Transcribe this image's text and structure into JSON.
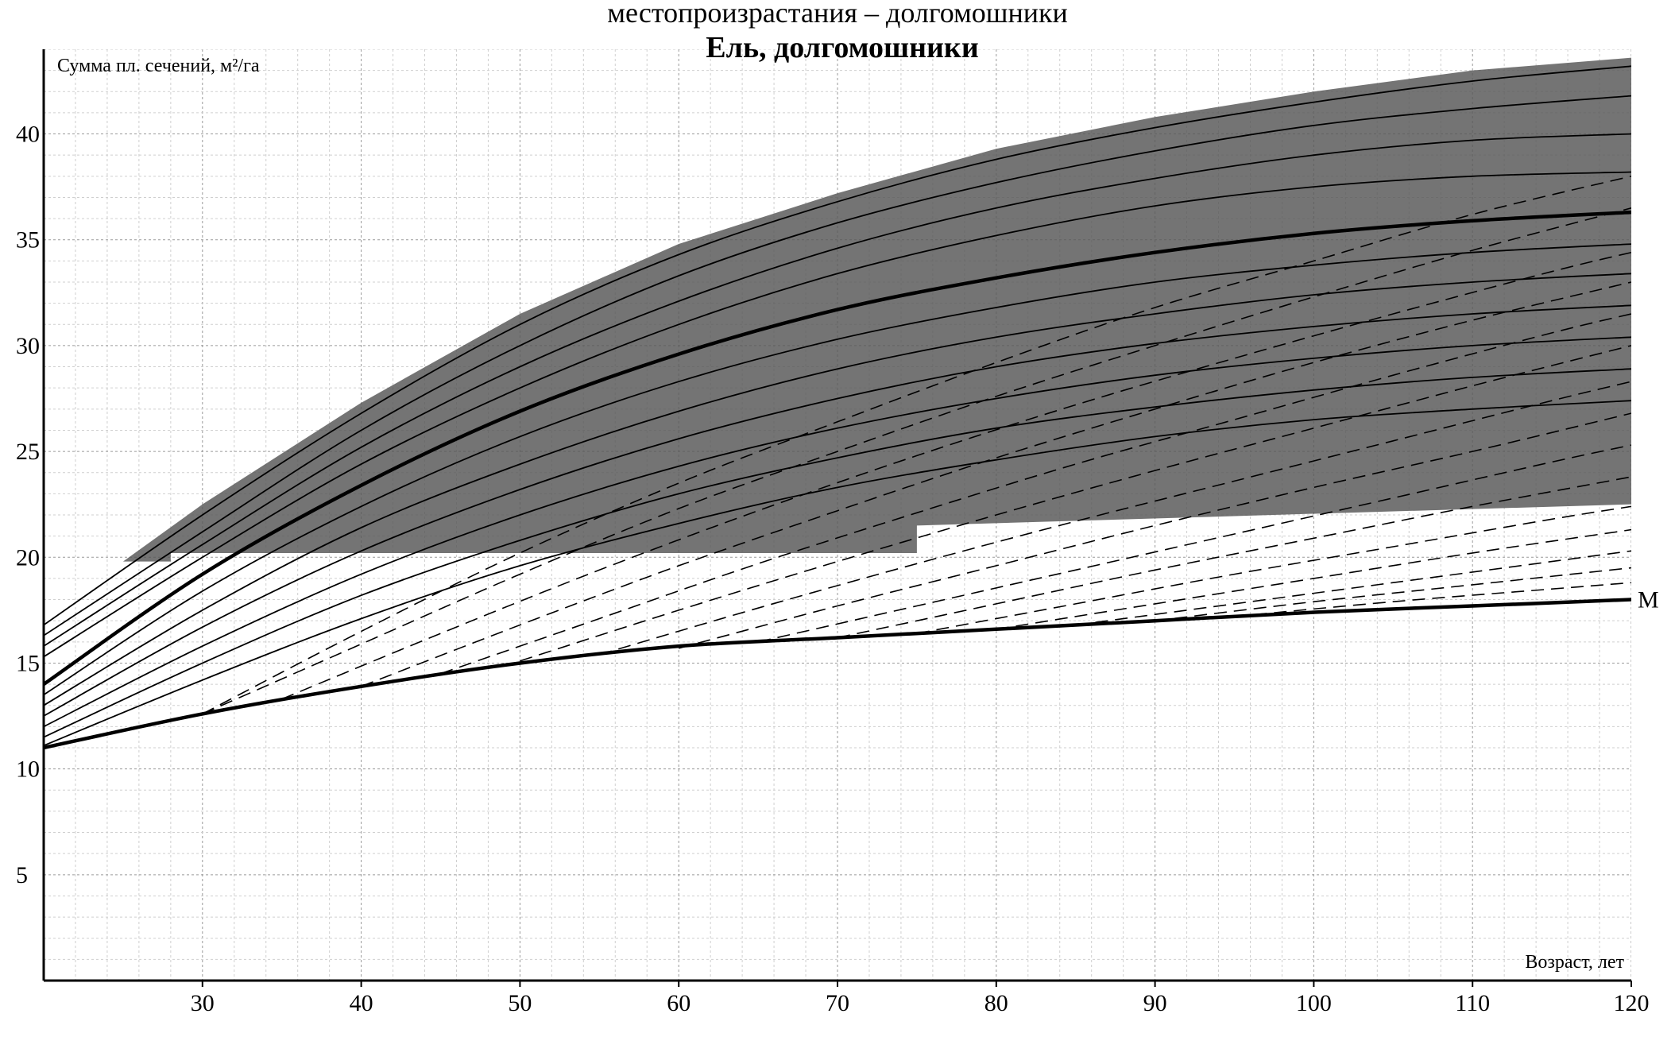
{
  "cut_heading": "местопроизрастания – долгомошники",
  "chart_data": {
    "type": "line",
    "title": "Ель, долгомошники",
    "ylabel": "Сумма пл. сечений, м²/га",
    "xlabel": "Возраст, лет",
    "xlim": [
      20,
      120
    ],
    "ylim": [
      0,
      44
    ],
    "x_ticks": [
      30,
      40,
      50,
      60,
      70,
      80,
      90,
      100,
      110,
      120
    ],
    "y_ticks": [
      5,
      10,
      15,
      20,
      25,
      30,
      35,
      40
    ],
    "grid": true,
    "minor_grid": true,
    "shaded_zone": {
      "color": "#555555",
      "upper": {
        "x": [
          25,
          30,
          40,
          50,
          60,
          70,
          80,
          90,
          100,
          110,
          120
        ],
        "y": [
          19.8,
          22.5,
          27.3,
          31.5,
          34.8,
          37.2,
          39.3,
          40.8,
          42.0,
          43.0,
          43.6
        ]
      },
      "lower": {
        "x": [
          25,
          28,
          28,
          75,
          75,
          120
        ],
        "y": [
          19.8,
          19.8,
          20.2,
          20.2,
          21.5,
          22.5
        ]
      }
    },
    "colors": {
      "solid": "#000000",
      "dashed": "#000000",
      "shade": "#555555"
    },
    "series": [
      {
        "style": "solid",
        "x": [
          20,
          30,
          40,
          50,
          60,
          70,
          80,
          90,
          100,
          110,
          120
        ],
        "y": [
          16.8,
          22.0,
          26.8,
          31.0,
          34.3,
          36.8,
          38.8,
          40.3,
          41.5,
          42.5,
          43.2
        ]
      },
      {
        "style": "solid",
        "x": [
          20,
          30,
          40,
          50,
          60,
          70,
          80,
          90,
          100,
          110,
          120
        ],
        "y": [
          16.3,
          21.2,
          26.0,
          30.0,
          33.3,
          35.8,
          37.7,
          39.2,
          40.4,
          41.2,
          41.8
        ]
      },
      {
        "style": "solid",
        "x": [
          20,
          30,
          40,
          50,
          60,
          70,
          80,
          90,
          100,
          110,
          120
        ],
        "y": [
          15.8,
          20.6,
          25.2,
          29.0,
          32.1,
          34.6,
          36.5,
          37.9,
          39.0,
          39.7,
          40.0
        ]
      },
      {
        "style": "solid",
        "x": [
          20,
          30,
          40,
          50,
          60,
          70,
          80,
          90,
          100,
          110,
          120
        ],
        "y": [
          15.3,
          20.0,
          24.4,
          28.0,
          31.0,
          33.4,
          35.2,
          36.6,
          37.5,
          38.0,
          38.2
        ]
      },
      {
        "style": "solid",
        "bold": true,
        "x": [
          20,
          30,
          40,
          50,
          60,
          70,
          80,
          90,
          100,
          110,
          120
        ],
        "y": [
          14.0,
          19.2,
          23.4,
          26.9,
          29.6,
          31.7,
          33.2,
          34.4,
          35.3,
          35.9,
          36.3
        ]
      },
      {
        "style": "solid",
        "x": [
          20,
          30,
          40,
          50,
          60,
          70,
          80,
          90,
          100,
          110,
          120
        ],
        "y": [
          13.5,
          18.4,
          22.4,
          25.7,
          28.3,
          30.3,
          31.8,
          33.0,
          33.8,
          34.4,
          34.8
        ]
      },
      {
        "style": "solid",
        "x": [
          20,
          30,
          40,
          50,
          60,
          70,
          80,
          90,
          100,
          110,
          120
        ],
        "y": [
          13.0,
          17.5,
          21.4,
          24.4,
          26.9,
          28.9,
          30.4,
          31.5,
          32.4,
          33.0,
          33.4
        ]
      },
      {
        "style": "solid",
        "x": [
          20,
          30,
          40,
          50,
          60,
          70,
          80,
          90,
          100,
          110,
          120
        ],
        "y": [
          12.5,
          16.7,
          20.3,
          23.2,
          25.6,
          27.5,
          29.0,
          30.1,
          30.9,
          31.5,
          31.9
        ]
      },
      {
        "style": "solid",
        "x": [
          20,
          30,
          40,
          50,
          60,
          70,
          80,
          90,
          100,
          110,
          120
        ],
        "y": [
          12.0,
          15.8,
          19.2,
          22.0,
          24.3,
          26.1,
          27.5,
          28.6,
          29.4,
          30.0,
          30.4
        ]
      },
      {
        "style": "solid",
        "x": [
          20,
          30,
          40,
          50,
          60,
          70,
          80,
          90,
          100,
          110,
          120
        ],
        "y": [
          11.5,
          15.0,
          18.2,
          20.8,
          23.0,
          24.7,
          26.1,
          27.1,
          27.9,
          28.5,
          28.9
        ]
      },
      {
        "style": "solid",
        "x": [
          20,
          30,
          40,
          50,
          60,
          70,
          80,
          90,
          100,
          110,
          120
        ],
        "y": [
          11.1,
          14.2,
          17.1,
          19.6,
          21.6,
          23.3,
          24.6,
          25.7,
          26.5,
          27.0,
          27.4
        ]
      },
      {
        "style": "dashed",
        "x": [
          30,
          40,
          50,
          60,
          70,
          80,
          90,
          100,
          110,
          120
        ],
        "y": [
          12.6,
          16.5,
          20.2,
          23.5,
          26.4,
          29.2,
          31.8,
          34.0,
          36.2,
          38.0
        ]
      },
      {
        "style": "dashed",
        "x": [
          30,
          40,
          50,
          60,
          70,
          80,
          90,
          100,
          110,
          120
        ],
        "y": [
          12.6,
          15.9,
          19.2,
          22.3,
          25.0,
          27.6,
          30.0,
          32.3,
          34.5,
          36.5
        ]
      },
      {
        "style": "dashed",
        "x": [
          35,
          45,
          55,
          65,
          75,
          85,
          95,
          105,
          115,
          120
        ],
        "y": [
          13.3,
          16.4,
          19.4,
          22.2,
          24.8,
          27.2,
          29.4,
          31.5,
          33.5,
          34.4
        ]
      },
      {
        "style": "dashed",
        "x": [
          40,
          50,
          60,
          70,
          80,
          90,
          100,
          110,
          120
        ],
        "y": [
          13.9,
          16.8,
          19.6,
          22.2,
          24.7,
          27.0,
          29.2,
          31.2,
          33.0
        ]
      },
      {
        "style": "dashed",
        "x": [
          45,
          55,
          65,
          75,
          85,
          95,
          105,
          115,
          120
        ],
        "y": [
          14.5,
          17.1,
          19.7,
          22.1,
          24.4,
          26.5,
          28.6,
          30.6,
          31.5
        ]
      },
      {
        "style": "dashed",
        "x": [
          50,
          60,
          70,
          80,
          90,
          100,
          110,
          120
        ],
        "y": [
          15.1,
          17.5,
          19.8,
          22.0,
          24.1,
          26.1,
          28.1,
          30.0
        ]
      },
      {
        "style": "dashed",
        "x": [
          55,
          65,
          75,
          85,
          95,
          105,
          115,
          120
        ],
        "y": [
          15.4,
          17.6,
          19.7,
          21.7,
          23.6,
          25.5,
          27.4,
          28.3
        ]
      },
      {
        "style": "dashed",
        "x": [
          60,
          70,
          80,
          90,
          100,
          110,
          120
        ],
        "y": [
          15.7,
          17.7,
          19.6,
          21.5,
          23.3,
          25.0,
          26.8
        ]
      },
      {
        "style": "dashed",
        "x": [
          65,
          75,
          85,
          95,
          105,
          115,
          120
        ],
        "y": [
          16.0,
          17.7,
          19.4,
          21.1,
          22.8,
          24.5,
          25.3
        ]
      },
      {
        "style": "dashed",
        "x": [
          70,
          80,
          90,
          100,
          110,
          120
        ],
        "y": [
          16.2,
          17.8,
          19.4,
          20.9,
          22.4,
          23.8
        ]
      },
      {
        "style": "dashed",
        "x": [
          75,
          85,
          95,
          105,
          115,
          120
        ],
        "y": [
          16.4,
          17.8,
          19.2,
          20.5,
          21.8,
          22.4
        ]
      },
      {
        "style": "dashed",
        "x": [
          80,
          90,
          100,
          110,
          120
        ],
        "y": [
          16.6,
          17.8,
          19.0,
          20.2,
          21.3
        ]
      },
      {
        "style": "dashed",
        "x": [
          85,
          95,
          105,
          115,
          120
        ],
        "y": [
          16.8,
          17.8,
          18.8,
          19.8,
          20.3
        ]
      },
      {
        "style": "dashed",
        "x": [
          90,
          100,
          110,
          120
        ],
        "y": [
          17.0,
          17.9,
          18.7,
          19.5
        ]
      },
      {
        "style": "dashed",
        "x": [
          95,
          105,
          115,
          120
        ],
        "y": [
          17.2,
          17.9,
          18.5,
          18.8
        ]
      },
      {
        "style": "solid",
        "bold": true,
        "name": "М",
        "x": [
          20,
          30,
          40,
          50,
          60,
          70,
          80,
          90,
          100,
          110,
          120
        ],
        "y": [
          11.0,
          12.6,
          13.9,
          15.0,
          15.8,
          16.2,
          16.6,
          17.0,
          17.4,
          17.7,
          18.0
        ]
      }
    ]
  }
}
